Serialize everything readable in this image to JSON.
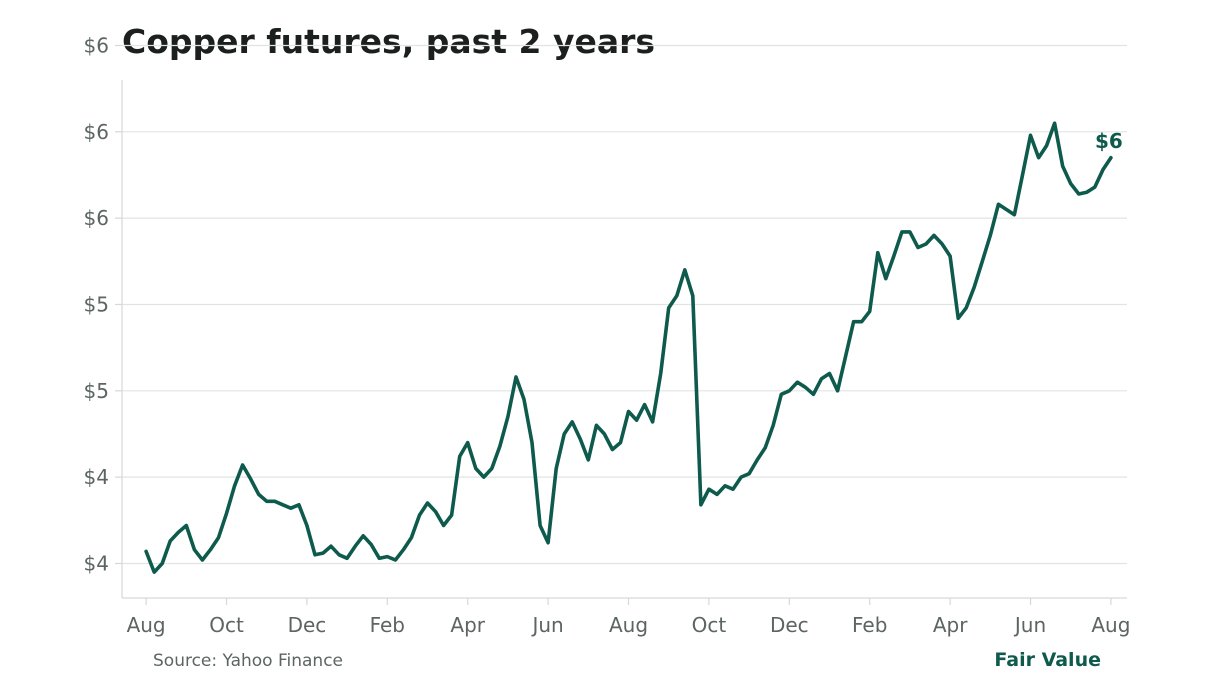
{
  "chart_data": {
    "type": "line",
    "title": "Copper futures, past 2 years",
    "xlabel": "",
    "ylabel": "",
    "x_tick_labels": [
      "Aug",
      "Oct",
      "Dec",
      "Feb",
      "Apr",
      "Jun",
      "Aug",
      "Oct",
      "Dec",
      "Feb",
      "Apr",
      "Jun",
      "Aug"
    ],
    "y_tick_labels": [
      "$4",
      "$4",
      "$5",
      "$5",
      "$6",
      "$6",
      "$6"
    ],
    "y_tick_values": [
      3.5,
      4.0,
      4.5,
      5.0,
      5.5,
      6.0,
      6.5
    ],
    "ylim": [
      3.3,
      6.3
    ],
    "xlim": [
      -0.6,
      24.4
    ],
    "grid": "horizontal",
    "legend": "none",
    "end_label": "$6",
    "x_unit": "months from first Aug",
    "series": [
      {
        "color": "#0e5a4c",
        "x": [
          0.0,
          0.2,
          0.4,
          0.6,
          0.8,
          1.0,
          1.2,
          1.4,
          1.6,
          1.8,
          2.0,
          2.2,
          2.4,
          2.6,
          2.8,
          3.0,
          3.2,
          3.4,
          3.6,
          3.8,
          4.0,
          4.2,
          4.4,
          4.6,
          4.8,
          5.0,
          5.2,
          5.4,
          5.6,
          5.8,
          6.0,
          6.2,
          6.4,
          6.6,
          6.8,
          7.0,
          7.2,
          7.4,
          7.6,
          7.8,
          8.0,
          8.2,
          8.4,
          8.6,
          8.8,
          9.0,
          9.2,
          9.4,
          9.6,
          9.8,
          10.0,
          10.2,
          10.4,
          10.6,
          10.8,
          11.0,
          11.2,
          11.4,
          11.6,
          11.8,
          12.0,
          12.2,
          12.4,
          12.6,
          12.8,
          13.0,
          13.2,
          13.4,
          13.6,
          13.8,
          14.0,
          14.2,
          14.4,
          14.6,
          14.8,
          15.0,
          15.2,
          15.4,
          15.6,
          15.8,
          16.0,
          16.2,
          16.4,
          16.6,
          16.8,
          17.0,
          17.2,
          17.4,
          17.6,
          17.8,
          18.0,
          18.2,
          18.4,
          18.6,
          18.8,
          19.0,
          19.2,
          19.4,
          19.6,
          19.8,
          20.0,
          20.2,
          20.4,
          20.6,
          20.8,
          21.0,
          21.2,
          21.4,
          21.6,
          21.8,
          22.0,
          22.2,
          22.4,
          22.6,
          22.8,
          23.0,
          23.2,
          23.4,
          23.6,
          23.8,
          24.0
        ],
        "values": [
          3.57,
          3.45,
          3.5,
          3.63,
          3.68,
          3.72,
          3.58,
          3.52,
          3.58,
          3.65,
          3.79,
          3.95,
          4.07,
          3.99,
          3.9,
          3.86,
          3.86,
          3.84,
          3.82,
          3.84,
          3.72,
          3.55,
          3.56,
          3.6,
          3.55,
          3.53,
          3.6,
          3.66,
          3.61,
          3.53,
          3.54,
          3.52,
          3.58,
          3.65,
          3.78,
          3.85,
          3.8,
          3.72,
          3.78,
          4.12,
          4.2,
          4.05,
          4.0,
          4.05,
          4.18,
          4.35,
          4.58,
          4.45,
          4.2,
          3.72,
          3.62,
          4.05,
          4.25,
          4.32,
          4.22,
          4.1,
          4.3,
          4.25,
          4.16,
          4.2,
          4.38,
          4.33,
          4.42,
          4.32,
          4.6,
          4.98,
          5.05,
          5.2,
          5.05,
          3.84,
          3.93,
          3.9,
          3.95,
          3.93,
          4.0,
          4.02,
          4.1,
          4.17,
          4.3,
          4.48,
          4.5,
          4.55,
          4.52,
          4.48,
          4.57,
          4.6,
          4.5,
          4.7,
          4.9,
          4.9,
          4.96,
          5.3,
          5.15,
          5.28,
          5.42,
          5.42,
          5.33,
          5.35,
          5.4,
          5.35,
          5.28,
          4.92,
          4.98,
          5.1,
          5.25,
          5.4,
          5.58,
          5.55,
          5.52,
          5.75,
          5.98,
          5.85,
          5.92,
          6.05,
          5.8,
          5.7,
          5.64,
          5.65,
          5.68,
          5.78,
          5.85
        ],
        "value_labels_printed": false
      }
    ]
  },
  "footer": {
    "source": "Source: Yahoo Finance",
    "brand": "Fair Value"
  }
}
